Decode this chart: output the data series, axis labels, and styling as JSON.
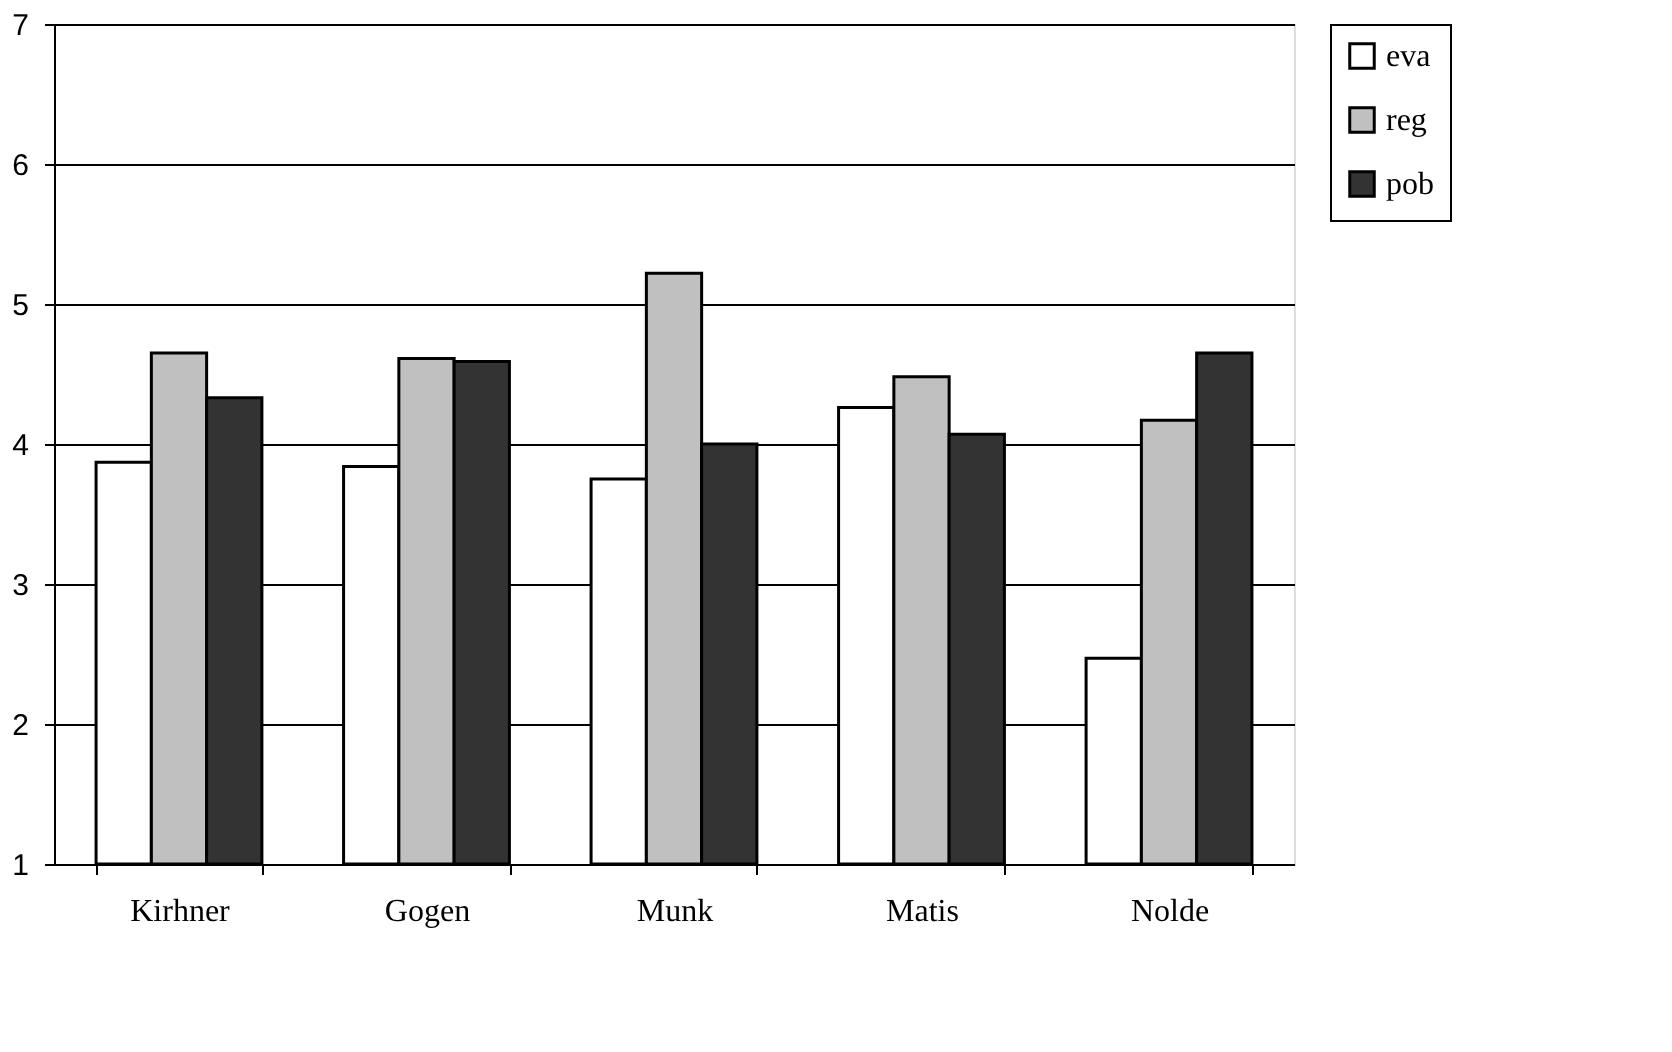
{
  "chart_data": {
    "type": "bar",
    "categories": [
      "Kirhner",
      "Gogen",
      "Munk",
      "Matis",
      "Nolde"
    ],
    "series": [
      {
        "name": "eva",
        "color": "#ffffff",
        "values": [
          3.87,
          3.84,
          3.75,
          4.26,
          2.47
        ]
      },
      {
        "name": "reg",
        "color": "#c0c0c0",
        "values": [
          4.65,
          4.61,
          5.22,
          4.48,
          4.17
        ]
      },
      {
        "name": "pob",
        "color": "#333333",
        "values": [
          4.33,
          4.59,
          4.0,
          4.07,
          4.65
        ]
      }
    ],
    "ylim": [
      1,
      7
    ],
    "yticks": [
      1,
      2,
      3,
      4,
      5,
      6,
      7
    ],
    "grid": "y",
    "legend": "right"
  }
}
